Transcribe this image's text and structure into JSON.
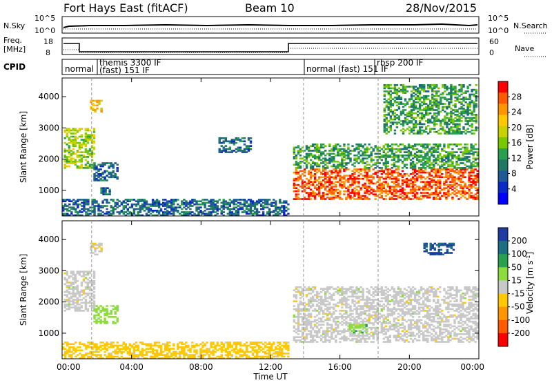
{
  "header": {
    "station": "Fort Hays East (fitACF)",
    "beam": "Beam 10",
    "date": "28/Nov/2015"
  },
  "strips": {
    "nsky_label": "N.Sky",
    "nsky_ticks": [
      "10^5",
      "10^0"
    ],
    "nsearch_label": "N.Search",
    "freq_label_1": "Freq.",
    "freq_label_2": "[MHz]",
    "freq_ticks": [
      "18",
      "8"
    ],
    "nave_label": "Nave",
    "nave_ticks": [
      "60",
      "0"
    ],
    "cpid_label": "CPID"
  },
  "cpid_segments": [
    {
      "text": "normal"
    },
    {
      "text": "themis 3300 IF"
    },
    {
      "text": "(fast) 151 IF"
    },
    {
      "text": "normal (fast) 151 IF"
    },
    {
      "text": "rbsp 200 IF"
    }
  ],
  "power_colorbar": {
    "label": "Power [dB]",
    "ticks": [
      "28",
      "24",
      "20",
      "16",
      "12",
      "8",
      "4"
    ],
    "colors": [
      "#ff0000",
      "#ff5a00",
      "#ff9600",
      "#ffc800",
      "#c8d200",
      "#78c800",
      "#28a050",
      "#1e7864",
      "#1e5a96",
      "#0a2ac8",
      "#0000ff"
    ]
  },
  "velocity_colorbar": {
    "label_main": "Velocity [m s",
    "label_exp": "-1",
    "label_end": "]",
    "ticks": [
      "200",
      "100",
      "50",
      "15",
      "-15",
      "-50",
      "-100",
      "-200"
    ],
    "colors": [
      "#1e3ca0",
      "#1e6e82",
      "#28a050",
      "#8cdc3c",
      "#c8c8c8",
      "#ffc800",
      "#ff9600",
      "#ff5a00",
      "#ff0000"
    ]
  },
  "chart_data": {
    "type": "heatmap",
    "xlabel": "Time UT",
    "ylabel": "Slant Range [km]",
    "x_ticks": [
      "00:00",
      "04:00",
      "08:00",
      "12:00",
      "16:00",
      "20:00",
      "00:00"
    ],
    "y_ticks": [
      "4000",
      "3000",
      "2000",
      "1000"
    ],
    "xlim_hours": [
      0,
      24
    ],
    "ylim_km": [
      180,
      4600
    ],
    "panels": [
      {
        "quantity": "Power [dB]",
        "scale": [
          0,
          30
        ],
        "regions": [
          {
            "t0": 0.1,
            "t1": 1.8,
            "r0": 1700,
            "r1": 3000,
            "value": 16
          },
          {
            "t0": 1.6,
            "t1": 2.3,
            "r0": 3500,
            "r1": 3900,
            "value": 20
          },
          {
            "t0": 1.8,
            "t1": 3.2,
            "r0": 1300,
            "r1": 1900,
            "value": 8
          },
          {
            "t0": 2.2,
            "t1": 2.7,
            "r0": 850,
            "r1": 1100,
            "value": 8
          },
          {
            "t0": 9.0,
            "t1": 10.8,
            "r0": 2200,
            "r1": 2700,
            "value": 8
          },
          {
            "t0": 0.0,
            "t1": 13.0,
            "r0": 180,
            "r1": 700,
            "value": 8
          },
          {
            "t0": 13.3,
            "t1": 24.0,
            "r0": 700,
            "r1": 1700,
            "value": 26
          },
          {
            "t0": 13.3,
            "t1": 24.0,
            "r0": 1700,
            "r1": 2500,
            "value": 12
          },
          {
            "t0": 18.5,
            "t1": 23.8,
            "r0": 2800,
            "r1": 4400,
            "value": 12
          }
        ]
      },
      {
        "quantity": "Velocity [m s-1]",
        "scale": [
          -200,
          200
        ],
        "regions": [
          {
            "t0": 0.1,
            "t1": 1.8,
            "r0": 1700,
            "r1": 3000,
            "value": 0
          },
          {
            "t0": 1.6,
            "t1": 2.3,
            "r0": 3500,
            "r1": 3900,
            "value": -10
          },
          {
            "t0": 1.8,
            "t1": 3.2,
            "r0": 1300,
            "r1": 1900,
            "value": 30
          },
          {
            "t0": 0.0,
            "t1": 13.0,
            "r0": 180,
            "r1": 700,
            "value": -30
          },
          {
            "t0": 13.3,
            "t1": 24.0,
            "r0": 700,
            "r1": 2500,
            "value": 0
          },
          {
            "t0": 16.5,
            "t1": 17.5,
            "r0": 1000,
            "r1": 1300,
            "value": 40
          },
          {
            "t0": 20.8,
            "t1": 22.5,
            "r0": 3500,
            "r1": 3900,
            "value": 200
          }
        ]
      }
    ],
    "cpid_change_times_hours": [
      1.7,
      13.9,
      18.2
    ]
  }
}
